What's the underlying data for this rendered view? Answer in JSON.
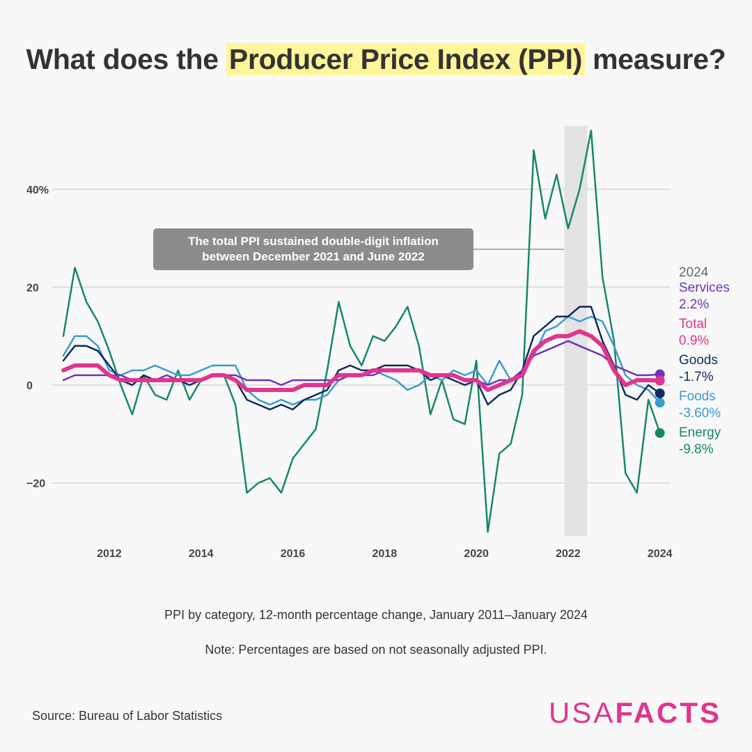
{
  "title": {
    "before": "What does the ",
    "highlight": "Producer Price Index (PPI)",
    "after": " measure?"
  },
  "caption": "PPI by category, 12-month percentage change, January 2011–January 2024",
  "note": "Note: Percentages are based on not seasonally adjusted PPI.",
  "source": "Source: Bureau of Labor Statistics",
  "logo": {
    "thin": "USA",
    "bold": "FACTS"
  },
  "annotation": {
    "line1": "The total PPI sustained double-digit inflation",
    "line2": "between December 2021 and June 2022"
  },
  "legend": {
    "year": "2024",
    "items": [
      {
        "name": "Services",
        "value": "2.2%",
        "color": "#6a35b8"
      },
      {
        "name": "Total",
        "value": "0.9%",
        "color": "#e0358f"
      },
      {
        "name": "Goods",
        "value": "-1.7%",
        "color": "#0d2b5e"
      },
      {
        "name": "Foods",
        "value": "-3.60%",
        "color": "#3a9bcc"
      },
      {
        "name": "Energy",
        "value": "-9.8%",
        "color": "#14876a"
      }
    ]
  },
  "chart_data": {
    "type": "line",
    "xlim": [
      "2011-01",
      "2024-01"
    ],
    "ylim": [
      -31,
      54
    ],
    "yticks": [
      {
        "value": 40,
        "label": "40%"
      },
      {
        "value": 20,
        "label": "20"
      },
      {
        "value": 0,
        "label": "0"
      },
      {
        "value": -20,
        "label": "−20"
      }
    ],
    "xticks": [
      "2012",
      "2014",
      "2016",
      "2018",
      "2020",
      "2022",
      "2024"
    ],
    "shaded_period": [
      "2021-12",
      "2022-06"
    ],
    "grid": "horizontal",
    "x": [
      "2011-01",
      "2011-04",
      "2011-07",
      "2011-10",
      "2012-01",
      "2012-04",
      "2012-07",
      "2012-10",
      "2013-01",
      "2013-04",
      "2013-07",
      "2013-10",
      "2014-01",
      "2014-04",
      "2014-07",
      "2014-10",
      "2015-01",
      "2015-04",
      "2015-07",
      "2015-10",
      "2016-01",
      "2016-04",
      "2016-07",
      "2016-10",
      "2017-01",
      "2017-04",
      "2017-07",
      "2017-10",
      "2018-01",
      "2018-04",
      "2018-07",
      "2018-10",
      "2019-01",
      "2019-04",
      "2019-07",
      "2019-10",
      "2020-01",
      "2020-04",
      "2020-07",
      "2020-10",
      "2021-01",
      "2021-04",
      "2021-07",
      "2021-10",
      "2022-01",
      "2022-04",
      "2022-07",
      "2022-10",
      "2023-01",
      "2023-04",
      "2023-07",
      "2023-10",
      "2024-01"
    ],
    "series": [
      {
        "name": "Energy",
        "color": "#14876a",
        "width": 2.5,
        "values": [
          10,
          24,
          17,
          13,
          7,
          0,
          -6,
          2,
          -2,
          -3,
          3,
          -3,
          1,
          2,
          2,
          -4,
          -22,
          -20,
          -19,
          -22,
          -15,
          -12,
          -9,
          3,
          17,
          8,
          4,
          10,
          9,
          12,
          16,
          8,
          -6,
          1,
          -7,
          -8,
          5,
          -30,
          -14,
          -12,
          -2,
          48,
          34,
          43,
          32,
          40,
          52,
          22,
          9,
          -18,
          -22,
          -3,
          -9.8
        ]
      },
      {
        "name": "Foods",
        "color": "#3a9bcc",
        "width": 2.5,
        "values": [
          6,
          10,
          10,
          8,
          3,
          2,
          3,
          3,
          4,
          3,
          2,
          2,
          3,
          4,
          4,
          4,
          -1,
          -3,
          -4,
          -3,
          -4,
          -3,
          -3,
          -2,
          1,
          2,
          2,
          3,
          2,
          1,
          -1,
          0,
          2,
          1,
          3,
          2,
          3,
          0,
          5,
          1,
          3,
          6,
          11,
          12,
          14,
          13,
          14,
          13,
          8,
          2,
          0,
          -1,
          -3.6
        ]
      },
      {
        "name": "Goods",
        "color": "#0d2b5e",
        "width": 2.5,
        "values": [
          5,
          8,
          8,
          7,
          4,
          1,
          0,
          2,
          1,
          1,
          1,
          0,
          1,
          2,
          2,
          1,
          -3,
          -4,
          -5,
          -4,
          -5,
          -3,
          -2,
          -1,
          3,
          4,
          3,
          3,
          4,
          4,
          4,
          3,
          1,
          2,
          1,
          0,
          1,
          -4,
          -2,
          -1,
          3,
          10,
          12,
          14,
          14,
          16,
          16,
          9,
          4,
          -2,
          -3,
          0,
          -1.7
        ]
      },
      {
        "name": "Services",
        "color": "#6a35b8",
        "width": 2.5,
        "values": [
          1,
          2,
          2,
          2,
          2,
          2,
          1,
          1,
          1,
          2,
          1,
          1,
          1,
          2,
          2,
          2,
          1,
          1,
          1,
          0,
          1,
          1,
          1,
          1,
          1,
          2,
          2,
          2,
          3,
          3,
          3,
          3,
          2,
          2,
          2,
          1,
          1,
          0,
          1,
          1,
          3,
          6,
          7,
          8,
          9,
          8,
          7,
          6,
          4,
          3,
          2,
          2,
          2.2
        ]
      },
      {
        "name": "Total",
        "color": "#e0358f",
        "width": 6,
        "values": [
          3,
          4,
          4,
          4,
          2,
          1,
          1,
          1,
          1,
          1,
          1,
          1,
          1,
          2,
          2,
          1,
          -1,
          -1,
          -1,
          -1,
          -1,
          0,
          0,
          0,
          2,
          2,
          2,
          3,
          3,
          3,
          3,
          3,
          2,
          2,
          2,
          1,
          1,
          -1,
          0,
          1,
          2,
          7,
          9,
          10,
          10,
          11,
          10,
          8,
          3,
          0,
          1,
          1,
          0.9
        ]
      }
    ]
  }
}
